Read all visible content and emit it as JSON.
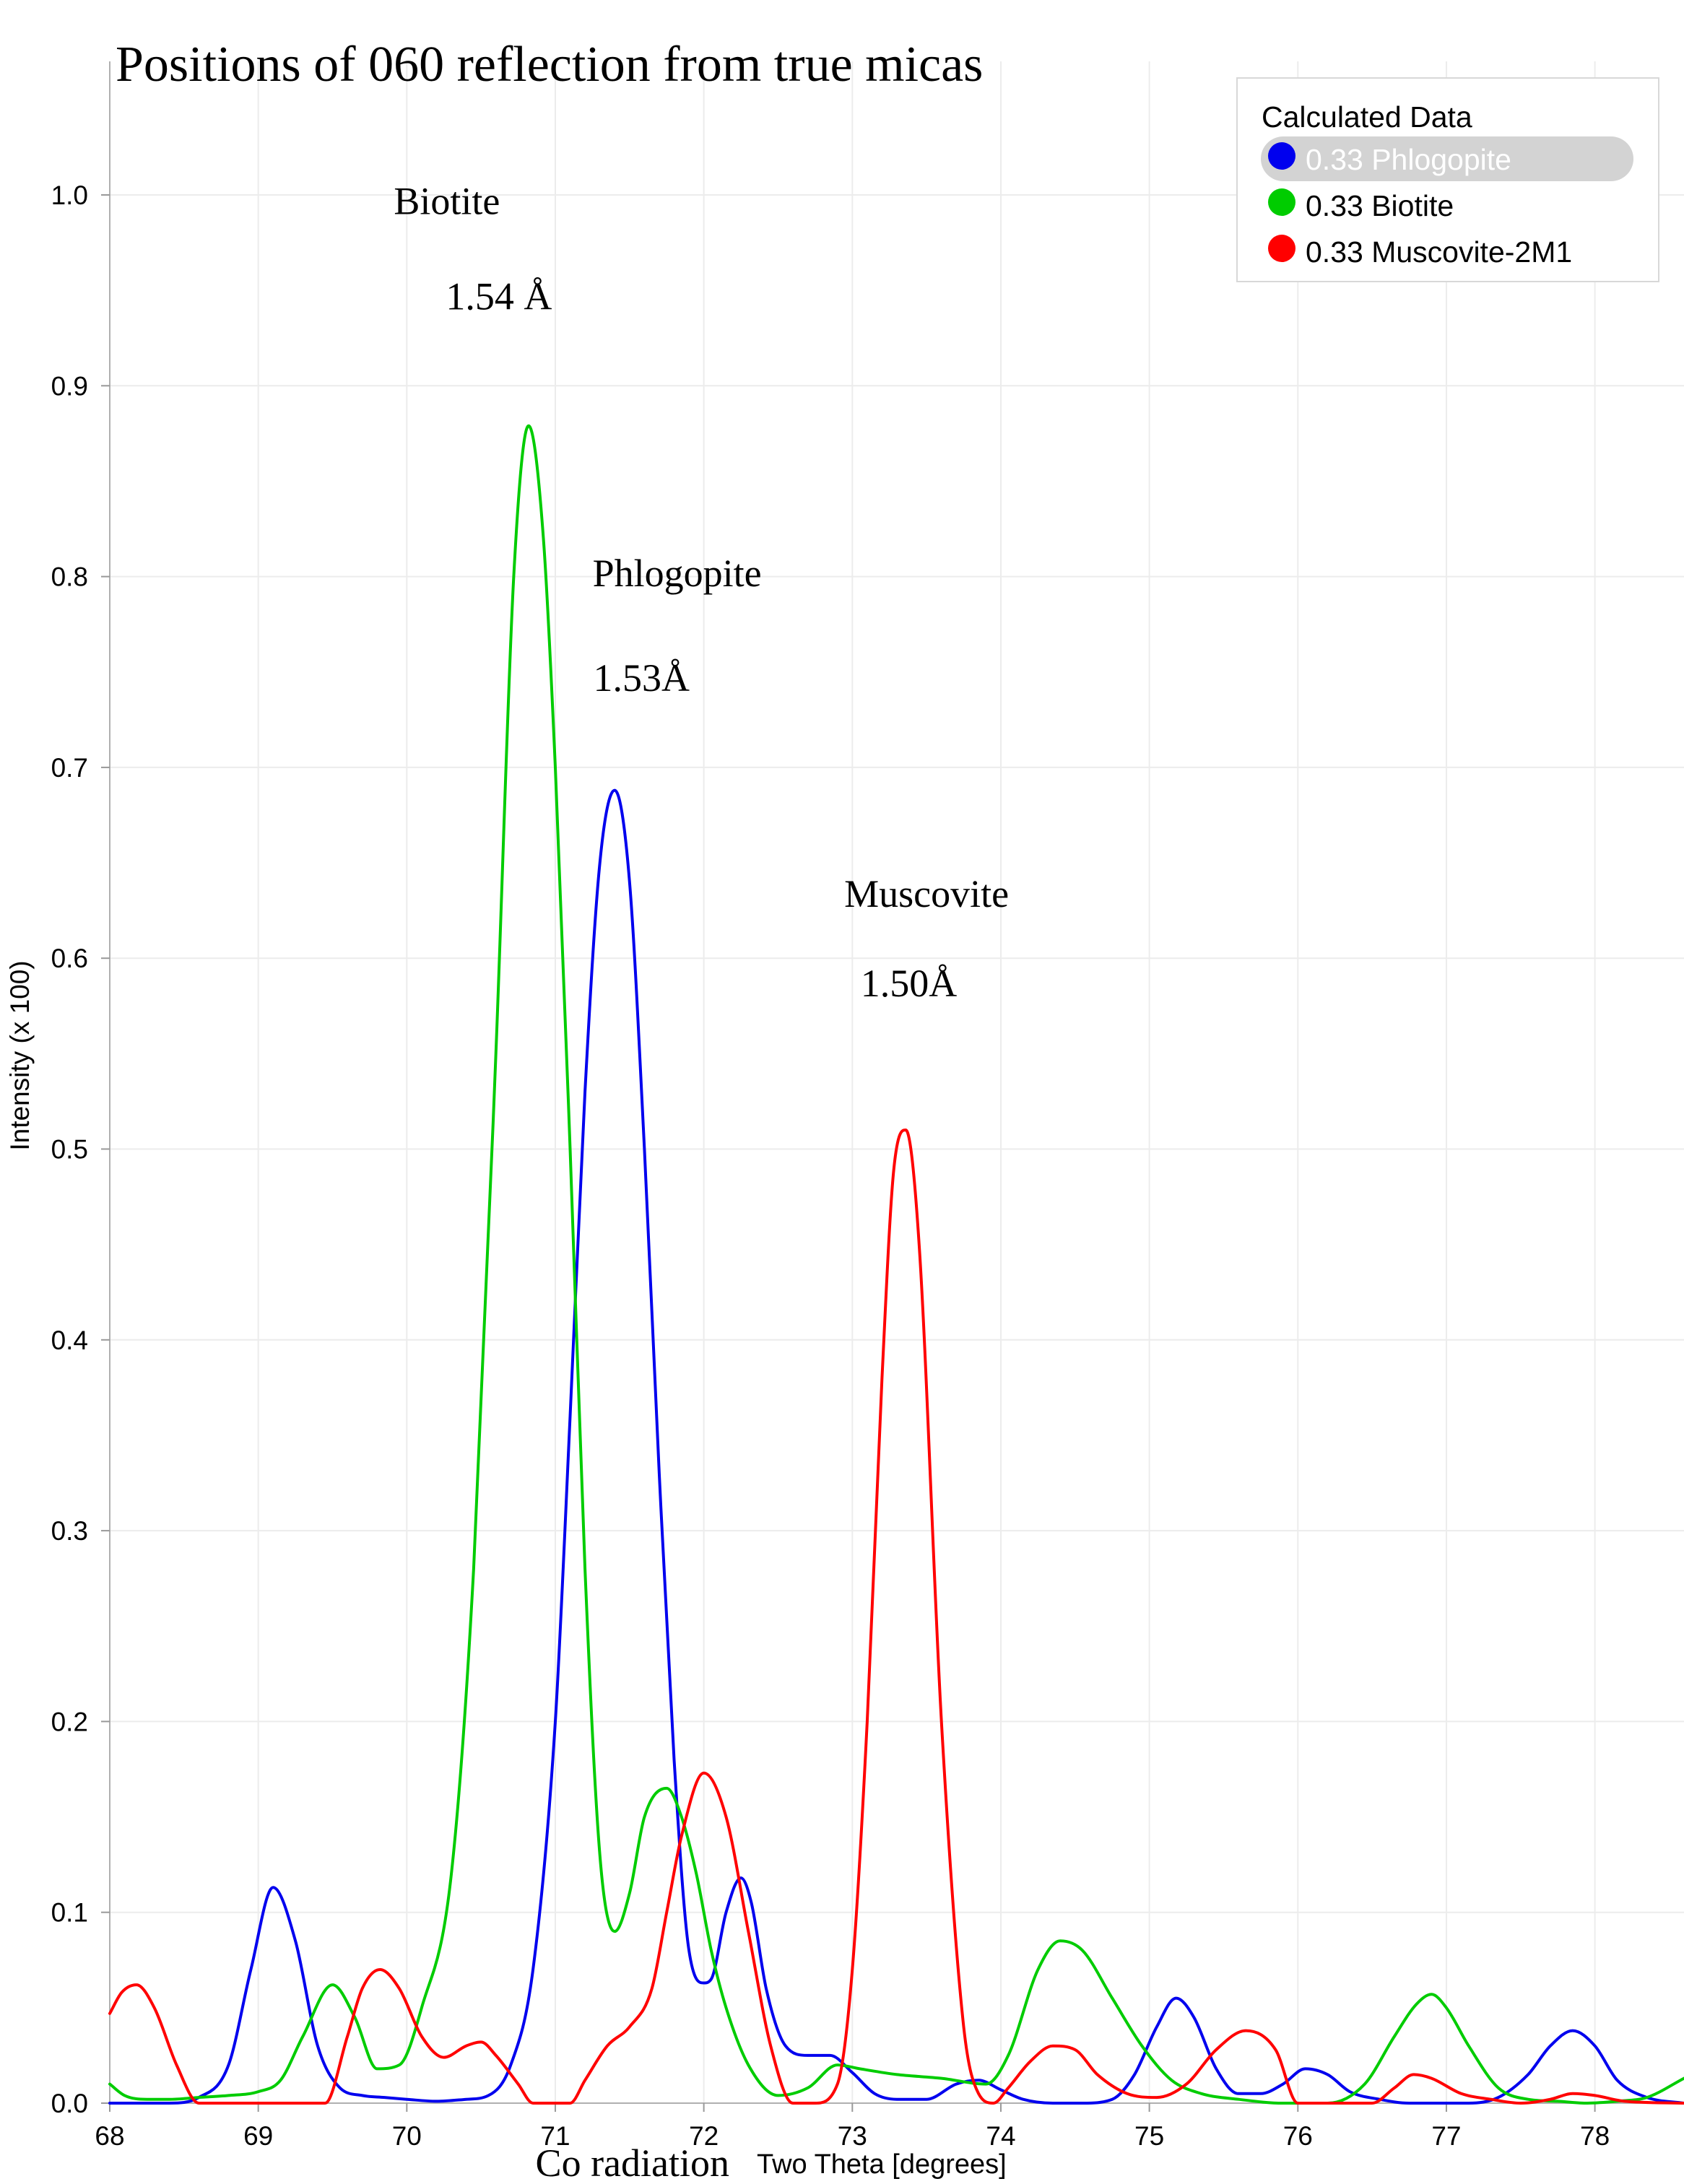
{
  "chart_data": {
    "type": "line",
    "title": "Positions of 060 reflection from true micas",
    "xlabel": "Two Theta [degrees]",
    "xlabel_note": "Co radiation",
    "ylabel": "Intensity (x 100)",
    "xlim": [
      68,
      78.6
    ],
    "ylim": [
      0,
      1.07
    ],
    "xticks": [
      68,
      69,
      70,
      71,
      72,
      73,
      74,
      75,
      76,
      77,
      78
    ],
    "yticks": [
      0.0,
      0.1,
      0.2,
      0.3,
      0.4,
      0.5,
      0.6,
      0.7,
      0.8,
      0.9,
      1.0
    ],
    "ytick_labels": [
      "0.0",
      "0.1",
      "0.2",
      "0.3",
      "0.4",
      "0.5",
      "0.6",
      "0.7",
      "0.8",
      "0.9",
      "1.0"
    ],
    "grid": true,
    "legend": {
      "title": "Calculated Data",
      "placement": "top-right",
      "entries": [
        {
          "label": "0.33  Phlogopite",
          "color": "#0000ee",
          "selected": true
        },
        {
          "label": "0.33  Biotite",
          "color": "#00cc00",
          "selected": false
        },
        {
          "label": "0.33  Muscovite-2M1",
          "color": "#ff0000",
          "selected": false
        }
      ]
    },
    "annotations": [
      {
        "text": "Biotite",
        "x": 70.27,
        "y": 0.99
      },
      {
        "text": "1.54 Å",
        "x": 70.62,
        "y": 0.94
      },
      {
        "text": "Phlogopite",
        "x": 71.82,
        "y": 0.795
      },
      {
        "text": "1.53Å",
        "x": 71.58,
        "y": 0.74
      },
      {
        "text": "Muscovite",
        "x": 73.5,
        "y": 0.627
      },
      {
        "text": "1.50Å",
        "x": 73.38,
        "y": 0.58
      }
    ],
    "series": [
      {
        "name": "0.33  Phlogopite",
        "color": "#0000ee",
        "x": [
          68.0,
          68.2,
          68.4,
          68.6,
          68.8,
          68.95,
          69.1,
          69.25,
          69.4,
          69.55,
          69.7,
          69.85,
          70.0,
          70.2,
          70.4,
          70.55,
          70.7,
          70.85,
          71.0,
          71.1,
          71.2,
          71.3,
          71.4,
          71.5,
          71.6,
          71.7,
          71.8,
          71.9,
          72.0,
          72.05,
          72.15,
          72.25,
          72.32,
          72.42,
          72.55,
          72.7,
          72.85,
          73.0,
          73.15,
          73.3,
          73.5,
          73.7,
          73.85,
          74.0,
          74.15,
          74.35,
          74.55,
          74.75,
          74.9,
          75.05,
          75.18,
          75.3,
          75.45,
          75.6,
          75.75,
          75.9,
          76.05,
          76.2,
          76.35,
          76.55,
          76.75,
          76.95,
          77.15,
          77.35,
          77.55,
          77.7,
          77.85,
          78.0,
          78.15,
          78.35,
          78.6
        ],
        "y": [
          0.0,
          0.0,
          0.0,
          0.003,
          0.02,
          0.07,
          0.113,
          0.085,
          0.03,
          0.008,
          0.004,
          0.003,
          0.002,
          0.001,
          0.002,
          0.004,
          0.02,
          0.07,
          0.2,
          0.36,
          0.53,
          0.65,
          0.688,
          0.64,
          0.5,
          0.33,
          0.18,
          0.08,
          0.063,
          0.065,
          0.1,
          0.118,
          0.105,
          0.06,
          0.03,
          0.025,
          0.025,
          0.016,
          0.005,
          0.002,
          0.002,
          0.01,
          0.012,
          0.007,
          0.002,
          0.0,
          0.0,
          0.002,
          0.015,
          0.04,
          0.055,
          0.045,
          0.018,
          0.005,
          0.005,
          0.01,
          0.018,
          0.015,
          0.006,
          0.002,
          0.0,
          0.0,
          0.0,
          0.003,
          0.015,
          0.03,
          0.038,
          0.03,
          0.012,
          0.003,
          0.0
        ]
      },
      {
        "name": "0.33  Biotite",
        "color": "#00cc00",
        "x": [
          68.0,
          68.1,
          68.25,
          68.4,
          68.6,
          68.8,
          69.0,
          69.15,
          69.3,
          69.5,
          69.65,
          69.8,
          69.95,
          70.1,
          70.3,
          70.45,
          70.6,
          70.72,
          70.82,
          70.92,
          71.0,
          71.1,
          71.2,
          71.3,
          71.4,
          71.5,
          71.6,
          71.75,
          71.85,
          71.95,
          72.05,
          72.15,
          72.3,
          72.5,
          72.7,
          72.9,
          73.05,
          73.3,
          73.6,
          73.9,
          74.05,
          74.25,
          74.4,
          74.55,
          74.75,
          74.95,
          75.15,
          75.35,
          75.6,
          75.9,
          76.2,
          76.45,
          76.65,
          76.8,
          76.9,
          77.0,
          77.15,
          77.35,
          77.55,
          77.75,
          77.95,
          78.15,
          78.35,
          78.6
        ],
        "y": [
          0.01,
          0.004,
          0.002,
          0.002,
          0.003,
          0.004,
          0.006,
          0.012,
          0.035,
          0.062,
          0.045,
          0.018,
          0.02,
          0.05,
          0.12,
          0.28,
          0.55,
          0.8,
          0.879,
          0.82,
          0.7,
          0.5,
          0.28,
          0.13,
          0.09,
          0.11,
          0.15,
          0.165,
          0.15,
          0.12,
          0.08,
          0.05,
          0.02,
          0.004,
          0.008,
          0.02,
          0.018,
          0.015,
          0.013,
          0.01,
          0.025,
          0.07,
          0.085,
          0.08,
          0.055,
          0.03,
          0.012,
          0.005,
          0.002,
          0.0,
          0.0,
          0.01,
          0.035,
          0.052,
          0.057,
          0.05,
          0.03,
          0.008,
          0.002,
          0.001,
          0.0,
          0.001,
          0.003,
          0.013
        ]
      },
      {
        "name": "0.33  Muscovite-2M1",
        "color": "#ff0000",
        "x": [
          68.0,
          68.08,
          68.18,
          68.3,
          68.45,
          68.6,
          69.45,
          69.6,
          69.7,
          69.82,
          69.95,
          70.1,
          70.25,
          70.4,
          70.5,
          70.6,
          70.75,
          70.85,
          71.1,
          71.2,
          71.35,
          71.5,
          71.65,
          71.75,
          71.85,
          72.0,
          72.15,
          72.3,
          72.45,
          72.6,
          72.75,
          72.9,
          73.0,
          73.1,
          73.2,
          73.28,
          73.36,
          73.45,
          73.6,
          73.75,
          73.85,
          73.95,
          74.05,
          74.2,
          74.35,
          74.5,
          74.65,
          74.85,
          75.05,
          75.25,
          75.45,
          75.65,
          75.85,
          76.0,
          76.5,
          76.65,
          76.78,
          76.9,
          77.1,
          77.3,
          77.5,
          77.7,
          77.85,
          78.0,
          78.2,
          78.6
        ],
        "y": [
          0.047,
          0.058,
          0.062,
          0.05,
          0.02,
          0.0,
          0.0,
          0.035,
          0.06,
          0.07,
          0.06,
          0.035,
          0.024,
          0.03,
          0.032,
          0.025,
          0.01,
          0.0,
          0.0,
          0.012,
          0.03,
          0.04,
          0.06,
          0.1,
          0.14,
          0.173,
          0.15,
          0.09,
          0.03,
          0.0,
          0.0,
          0.01,
          0.07,
          0.2,
          0.38,
          0.49,
          0.51,
          0.45,
          0.2,
          0.04,
          0.005,
          0.0,
          0.008,
          0.022,
          0.03,
          0.028,
          0.015,
          0.005,
          0.003,
          0.01,
          0.028,
          0.038,
          0.028,
          0.0,
          0.0,
          0.008,
          0.015,
          0.013,
          0.005,
          0.002,
          0.0,
          0.002,
          0.005,
          0.004,
          0.001,
          0.0
        ]
      }
    ]
  }
}
